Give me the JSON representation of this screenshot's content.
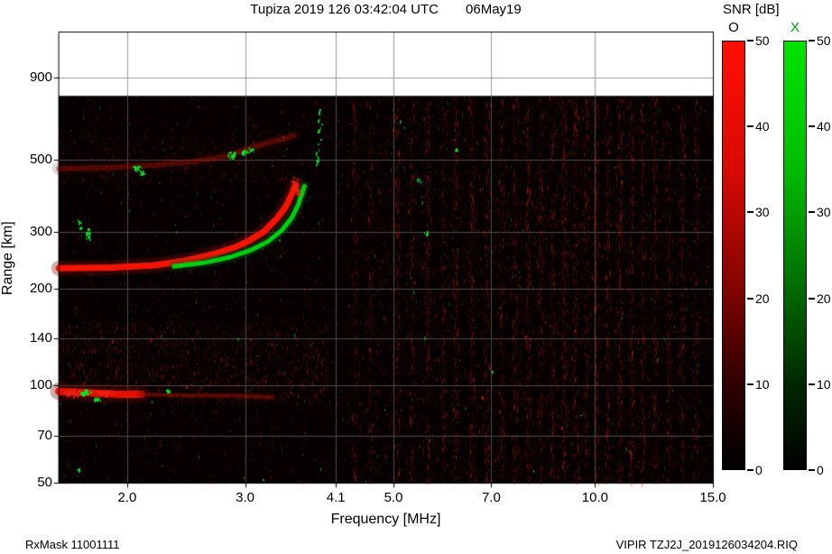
{
  "header": {
    "title": "Tupiza 2019 126 03:42:04 UTC",
    "date": "06May19"
  },
  "footer": {
    "rx_mask": "RxMask 11001111",
    "file_id": "VIPIR  TZJ2J_2019126034204.RIQ"
  },
  "chart_data": {
    "type": "heatmap",
    "title": "Tupiza 2019 126 03:42:04 UTC",
    "date_label": "06May19",
    "station": "Tupiza",
    "xlabel": "Frequency [MHz]",
    "ylabel": "Range [km]",
    "x_scale": "log",
    "y_scale": "log",
    "x_tick_values": [
      2.0,
      3.0,
      4.1,
      5.0,
      7.0,
      10.0,
      15.0
    ],
    "x_tick_labels": [
      "2.0",
      "3.0",
      "4.1",
      "5.0",
      "7.0",
      "10.0",
      "15.0"
    ],
    "y_tick_values": [
      900,
      500,
      300,
      200,
      140,
      100,
      70,
      50
    ],
    "y_tick_labels": [
      "900",
      "500",
      "300",
      "200",
      "140",
      "100",
      "70",
      "50"
    ],
    "x_range": [
      1.58,
      15.0
    ],
    "y_range": [
      50,
      1250
    ],
    "max_data_range_km": 790,
    "colorbar": {
      "label": "SNR [dB]",
      "min": 0,
      "max": 50,
      "tick_values": [
        50,
        40,
        30,
        20,
        10,
        0
      ],
      "tick_labels": [
        "50",
        "40",
        "30",
        "20",
        "10",
        "0"
      ],
      "o_label": "O",
      "x_label": "X",
      "x_label_color": "#00a000",
      "o_stops": [
        "#ff0f00 0%",
        "#d80a00 30%",
        "#8a0500 55%",
        "#2e0100 80%",
        "#000000 100%"
      ],
      "x_stops": [
        "#00e400 0%",
        "#00bc00 30%",
        "#007400 55%",
        "#002800 80%",
        "#000000 100%"
      ]
    },
    "traces": [
      {
        "name": "f-region-o-mode",
        "mode": "O",
        "color": "#ff1505",
        "halo": "#7c0c00",
        "width": 7,
        "alpha": 0.95,
        "speckle": true,
        "points": [
          [
            1.58,
            231
          ],
          [
            1.9,
            232
          ],
          [
            2.2,
            236
          ],
          [
            2.45,
            244
          ],
          [
            2.7,
            256
          ],
          [
            2.9,
            268
          ],
          [
            3.05,
            282
          ],
          [
            3.2,
            300
          ],
          [
            3.35,
            330
          ],
          [
            3.45,
            358
          ],
          [
            3.52,
            390
          ],
          [
            3.57,
            420
          ]
        ]
      },
      {
        "name": "f-region-x-mode",
        "mode": "X",
        "color": "#00d912",
        "halo": "#064f06",
        "width": 5,
        "alpha": 0.95,
        "speckle": true,
        "points": [
          [
            2.35,
            234
          ],
          [
            2.6,
            240
          ],
          [
            2.85,
            250
          ],
          [
            3.05,
            262
          ],
          [
            3.25,
            280
          ],
          [
            3.4,
            302
          ],
          [
            3.52,
            330
          ],
          [
            3.6,
            362
          ],
          [
            3.65,
            395
          ],
          [
            3.68,
            415
          ]
        ]
      },
      {
        "name": "e-region-strong",
        "mode": "O",
        "color": "#ee1203",
        "halo": "#600800",
        "width": 8,
        "alpha": 0.95,
        "speckle": true,
        "points": [
          [
            1.58,
            96
          ],
          [
            1.75,
            95
          ],
          [
            1.95,
            94
          ],
          [
            2.1,
            94
          ]
        ]
      },
      {
        "name": "e-region-weak",
        "mode": "O",
        "color": "#941005",
        "halo": "#3a0600",
        "width": 4,
        "alpha": 0.55,
        "speckle": true,
        "points": [
          [
            2.1,
            94
          ],
          [
            2.5,
            93
          ],
          [
            2.9,
            93
          ],
          [
            3.3,
            92
          ]
        ]
      },
      {
        "name": "second-hop-o-mode",
        "mode": "O",
        "color": "#a81408",
        "halo": "#400700",
        "width": 6,
        "alpha": 0.42,
        "speckle": true,
        "points": [
          [
            1.58,
            470
          ],
          [
            1.9,
            474
          ],
          [
            2.2,
            482
          ],
          [
            2.5,
            494
          ],
          [
            2.8,
            512
          ],
          [
            3.0,
            538
          ],
          [
            3.2,
            560
          ],
          [
            3.4,
            580
          ],
          [
            3.55,
            595
          ]
        ]
      }
    ],
    "red_clusters": [
      [
        3.56,
        415,
        30,
        3,
        9
      ],
      [
        3.6,
        398,
        20,
        3,
        8
      ],
      [
        1.66,
        95,
        60,
        8,
        4
      ],
      [
        1.85,
        95,
        40,
        8,
        3
      ]
    ],
    "green_clusters": [
      [
        1.73,
        95,
        45,
        5,
        3
      ],
      [
        1.8,
        91,
        18,
        3,
        2
      ],
      [
        1.75,
        296,
        26,
        3,
        6
      ],
      [
        1.7,
        315,
        14,
        2,
        5
      ],
      [
        2.06,
        473,
        26,
        4,
        3
      ],
      [
        2.1,
        458,
        12,
        3,
        3
      ],
      [
        2.87,
        520,
        30,
        4,
        4
      ],
      [
        2.99,
        528,
        22,
        3,
        3
      ],
      [
        3.07,
        538,
        12,
        3,
        3
      ],
      [
        3.85,
        500,
        14,
        2,
        18
      ],
      [
        3.88,
        650,
        12,
        2,
        16
      ],
      [
        5.6,
        300,
        8,
        2,
        3
      ],
      [
        5.45,
        430,
        7,
        2,
        3
      ],
      [
        6.2,
        540,
        6,
        2,
        3
      ],
      [
        2.3,
        96,
        10,
        3,
        2
      ],
      [
        1.69,
        55,
        6,
        2,
        2
      ]
    ],
    "noise": {
      "seed": 1337,
      "red_regions": [
        {
          "f": [
            1.58,
            15.0
          ],
          "r": [
            50,
            790
          ],
          "count": 4500,
          "rgb": [
            190,
            24,
            10
          ],
          "alpha": 0.3
        },
        {
          "f": [
            1.58,
            4.3
          ],
          "r": [
            50,
            790
          ],
          "count": 2200,
          "rgb": [
            195,
            26,
            12
          ],
          "alpha": 0.26
        },
        {
          "f": [
            4.3,
            15.0
          ],
          "r": [
            50,
            790
          ],
          "count": 5200,
          "rgb": [
            205,
            28,
            12
          ],
          "alpha": 0.4
        },
        {
          "f": [
            1.58,
            4.0
          ],
          "r": [
            88,
            158
          ],
          "count": 1900,
          "rgb": [
            210,
            32,
            16
          ],
          "alpha": 0.42
        },
        {
          "f": [
            1.58,
            3.5
          ],
          "r": [
            425,
            600
          ],
          "count": 750,
          "rgb": [
            200,
            28,
            14
          ],
          "alpha": 0.3
        }
      ],
      "green_region": {
        "f": [
          1.58,
          15.0
        ],
        "r": [
          50,
          790
        ],
        "count": 850,
        "rgb": [
          15,
          215,
          30
        ],
        "alpha": 0.55
      },
      "rfi_columns": [
        [
          4.37,
          0.35
        ],
        [
          4.62,
          0.3
        ],
        [
          5.07,
          0.5
        ],
        [
          5.33,
          0.45
        ],
        [
          5.62,
          0.55
        ],
        [
          5.95,
          0.4
        ],
        [
          6.2,
          0.6
        ],
        [
          6.55,
          0.55
        ],
        [
          6.9,
          0.45
        ],
        [
          7.25,
          0.4
        ],
        [
          7.6,
          0.55
        ],
        [
          7.95,
          0.65
        ],
        [
          8.3,
          0.5
        ],
        [
          8.65,
          0.55
        ],
        [
          9.0,
          0.65
        ],
        [
          9.35,
          0.55
        ],
        [
          9.7,
          0.5
        ],
        [
          10.05,
          0.65
        ],
        [
          10.45,
          0.55
        ],
        [
          10.9,
          0.65
        ],
        [
          11.35,
          0.55
        ],
        [
          11.8,
          0.5
        ],
        [
          12.3,
          0.55
        ],
        [
          12.9,
          0.4
        ],
        [
          13.5,
          0.45
        ],
        [
          14.2,
          0.35
        ]
      ]
    }
  }
}
